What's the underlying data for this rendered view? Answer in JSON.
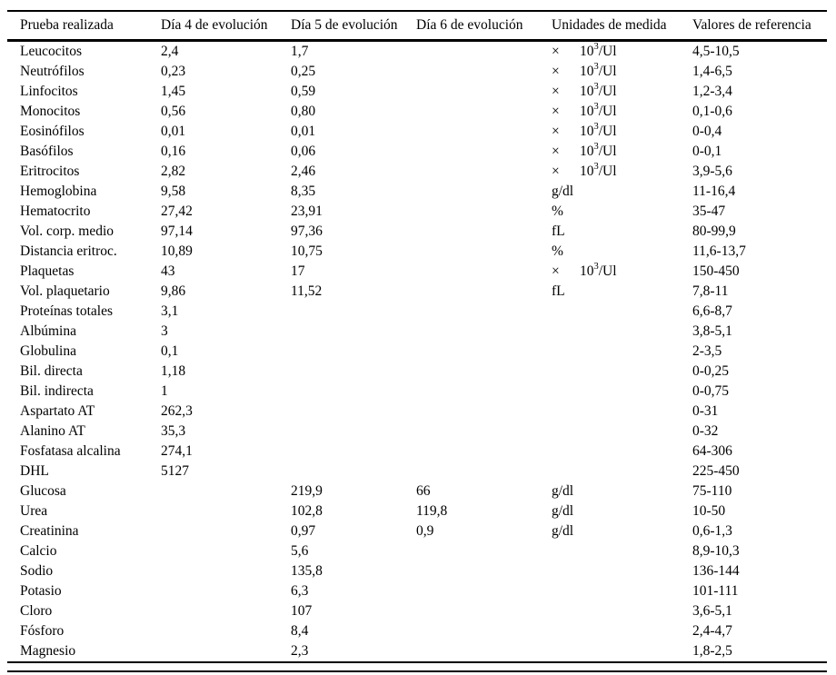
{
  "table": {
    "columns": [
      "Prueba realizada",
      "Día 4 de evolución",
      "Día 5 de evolución",
      "Día 6 de evolución",
      "Unidades de medida",
      "Valores de referencia"
    ],
    "rows": [
      {
        "prueba": "Leucocitos",
        "dia4": "2,4",
        "dia5": "1,7",
        "dia6": "",
        "unidades": "× 10³/Ul",
        "referencia": "4,5-10,5"
      },
      {
        "prueba": "Neutrófilos",
        "dia4": "0,23",
        "dia5": "0,25",
        "dia6": "",
        "unidades": "× 10³/Ul",
        "referencia": "1,4-6,5"
      },
      {
        "prueba": "Linfocitos",
        "dia4": "1,45",
        "dia5": "0,59",
        "dia6": "",
        "unidades": "× 10³/Ul",
        "referencia": "1,2-3,4"
      },
      {
        "prueba": "Monocitos",
        "dia4": "0,56",
        "dia5": "0,80",
        "dia6": "",
        "unidades": "× 10³/Ul",
        "referencia": "0,1-0,6"
      },
      {
        "prueba": "Eosinófilos",
        "dia4": "0,01",
        "dia5": "0,01",
        "dia6": "",
        "unidades": "× 10³/Ul",
        "referencia": "0-0,4"
      },
      {
        "prueba": "Basófilos",
        "dia4": "0,16",
        "dia5": "0,06",
        "dia6": "",
        "unidades": "× 10³/Ul",
        "referencia": "0-0,1"
      },
      {
        "prueba": "Eritrocitos",
        "dia4": "2,82",
        "dia5": "2,46",
        "dia6": "",
        "unidades": "× 10³/Ul",
        "referencia": "3,9-5,6"
      },
      {
        "prueba": "Hemoglobina",
        "dia4": "9,58",
        "dia5": "8,35",
        "dia6": "",
        "unidades": "g/dl",
        "referencia": "11-16,4"
      },
      {
        "prueba": "Hematocrito",
        "dia4": "27,42",
        "dia5": "23,91",
        "dia6": "",
        "unidades": "%",
        "referencia": "35-47"
      },
      {
        "prueba": "Vol. corp. medio",
        "dia4": "97,14",
        "dia5": "97,36",
        "dia6": "",
        "unidades": "fL",
        "referencia": "80-99,9"
      },
      {
        "prueba": "Distancia eritroc.",
        "dia4": "10,89",
        "dia5": "10,75",
        "dia6": "",
        "unidades": "%",
        "referencia": "11,6-13,7"
      },
      {
        "prueba": "Plaquetas",
        "dia4": "43",
        "dia5": "17",
        "dia6": "",
        "unidades": "× 10³/Ul",
        "referencia": "150-450"
      },
      {
        "prueba": "Vol. plaquetario",
        "dia4": "9,86",
        "dia5": "11,52",
        "dia6": "",
        "unidades": "fL",
        "referencia": "7,8-11"
      },
      {
        "prueba": "Proteínas totales",
        "dia4": "3,1",
        "dia5": "",
        "dia6": "",
        "unidades": "",
        "referencia": "6,6-8,7"
      },
      {
        "prueba": "Albúmina",
        "dia4": "3",
        "dia5": "",
        "dia6": "",
        "unidades": "",
        "referencia": "3,8-5,1"
      },
      {
        "prueba": "Globulina",
        "dia4": "0,1",
        "dia5": "",
        "dia6": "",
        "unidades": "",
        "referencia": "2-3,5"
      },
      {
        "prueba": "Bil. directa",
        "dia4": "1,18",
        "dia5": "",
        "dia6": "",
        "unidades": "",
        "referencia": "0-0,25"
      },
      {
        "prueba": "Bil. indirecta",
        "dia4": "1",
        "dia5": "",
        "dia6": "",
        "unidades": "",
        "referencia": "0-0,75"
      },
      {
        "prueba": "Aspartato AT",
        "dia4": "262,3",
        "dia5": "",
        "dia6": "",
        "unidades": "",
        "referencia": "0-31"
      },
      {
        "prueba": "Alanino AT",
        "dia4": "35,3",
        "dia5": "",
        "dia6": "",
        "unidades": "",
        "referencia": "0-32"
      },
      {
        "prueba": "Fosfatasa alcalina",
        "dia4": "274,1",
        "dia5": "",
        "dia6": "",
        "unidades": "",
        "referencia": "64-306"
      },
      {
        "prueba": "DHL",
        "dia4": "5127",
        "dia5": "",
        "dia6": "",
        "unidades": "",
        "referencia": "225-450"
      },
      {
        "prueba": "Glucosa",
        "dia4": "",
        "dia5": "219,9",
        "dia6": "66",
        "unidades": "g/dl",
        "referencia": "75-110"
      },
      {
        "prueba": "Urea",
        "dia4": "",
        "dia5": "102,8",
        "dia6": "119,8",
        "unidades": "g/dl",
        "referencia": "10-50"
      },
      {
        "prueba": "Creatinina",
        "dia4": "",
        "dia5": "0,97",
        "dia6": "0,9",
        "unidades": "g/dl",
        "referencia": "0,6-1,3"
      },
      {
        "prueba": "Calcio",
        "dia4": "",
        "dia5": "5,6",
        "dia6": "",
        "unidades": "",
        "referencia": "8,9-10,3"
      },
      {
        "prueba": "Sodio",
        "dia4": "",
        "dia5": "135,8",
        "dia6": "",
        "unidades": "",
        "referencia": "136-144"
      },
      {
        "prueba": "Potasio",
        "dia4": "",
        "dia5": "6,3",
        "dia6": "",
        "unidades": "",
        "referencia": "101-111"
      },
      {
        "prueba": "Cloro",
        "dia4": "",
        "dia5": "107",
        "dia6": "",
        "unidades": "",
        "referencia": "3,6-5,1"
      },
      {
        "prueba": "Fósforo",
        "dia4": "",
        "dia5": "8,4",
        "dia6": "",
        "unidades": "",
        "referencia": "2,4-4,7"
      },
      {
        "prueba": "Magnesio",
        "dia4": "",
        "dia5": "2,3",
        "dia6": "",
        "unidades": "",
        "referencia": "1,8-2,5"
      }
    ]
  }
}
